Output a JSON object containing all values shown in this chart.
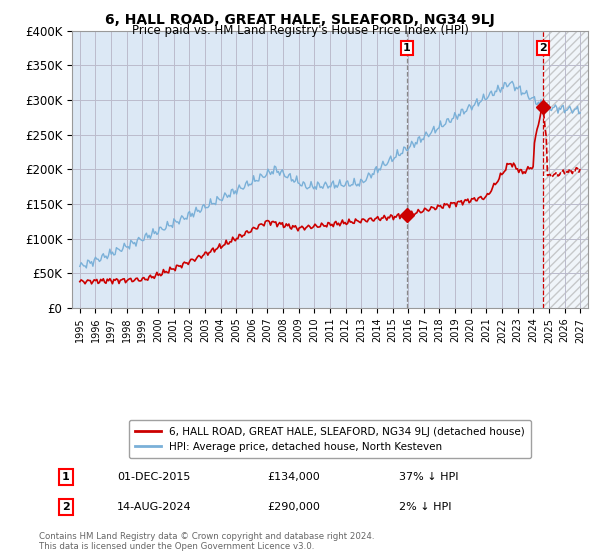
{
  "title": "6, HALL ROAD, GREAT HALE, SLEAFORD, NG34 9LJ",
  "subtitle": "Price paid vs. HM Land Registry's House Price Index (HPI)",
  "ylim": [
    0,
    400000
  ],
  "yticks": [
    0,
    50000,
    100000,
    150000,
    200000,
    250000,
    300000,
    350000,
    400000
  ],
  "ytick_labels": [
    "£0",
    "£50K",
    "£100K",
    "£150K",
    "£200K",
    "£250K",
    "£300K",
    "£350K",
    "£400K"
  ],
  "hpi_color": "#7ab0d8",
  "sale_color": "#cc0000",
  "vline1_color": "#888888",
  "vline2_color": "#cc0000",
  "point1_date_num": 2015.92,
  "point1_price": 134000,
  "point2_date_num": 2024.62,
  "point2_price": 290000,
  "point1_date": "01-DEC-2015",
  "point2_date": "14-AUG-2024",
  "point1_hpi_pct": "37% ↓ HPI",
  "point2_hpi_pct": "2% ↓ HPI",
  "legend_sale": "6, HALL ROAD, GREAT HALE, SLEAFORD, NG34 9LJ (detached house)",
  "legend_hpi": "HPI: Average price, detached house, North Kesteven",
  "footnote": "Contains HM Land Registry data © Crown copyright and database right 2024.\nThis data is licensed under the Open Government Licence v3.0.",
  "bg_color": "#ffffff",
  "grid_color": "#bbbbcc",
  "plot_bg": "#dce8f5"
}
